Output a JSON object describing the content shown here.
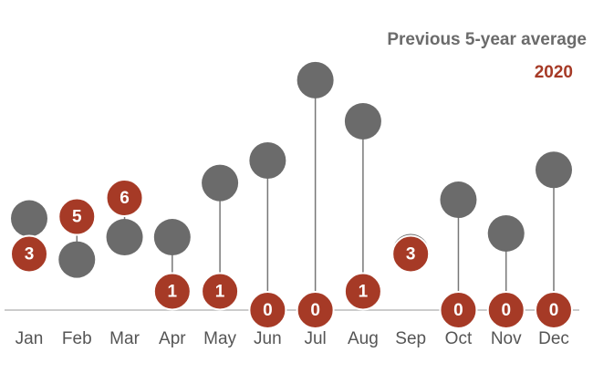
{
  "chart_data": {
    "type": "dumbbell",
    "categories": [
      "Jan",
      "Feb",
      "Mar",
      "Apr",
      "May",
      "Jun",
      "Jul",
      "Aug",
      "Sep",
      "Oct",
      "Nov",
      "Dec"
    ],
    "series": [
      {
        "name": "Previous 5-year average",
        "color": "#6b6b6b",
        "values": [
          4.9,
          2.7,
          3.9,
          3.9,
          6.8,
          8.0,
          12.3,
          10.1,
          3.1,
          5.9,
          4.1,
          7.5
        ]
      },
      {
        "name": "2020",
        "color": "#a63a26",
        "values": [
          3,
          5,
          6,
          1,
          1,
          0,
          0,
          1,
          3,
          0,
          0,
          0
        ]
      }
    ],
    "ylim": [
      0,
      13
    ]
  }
}
